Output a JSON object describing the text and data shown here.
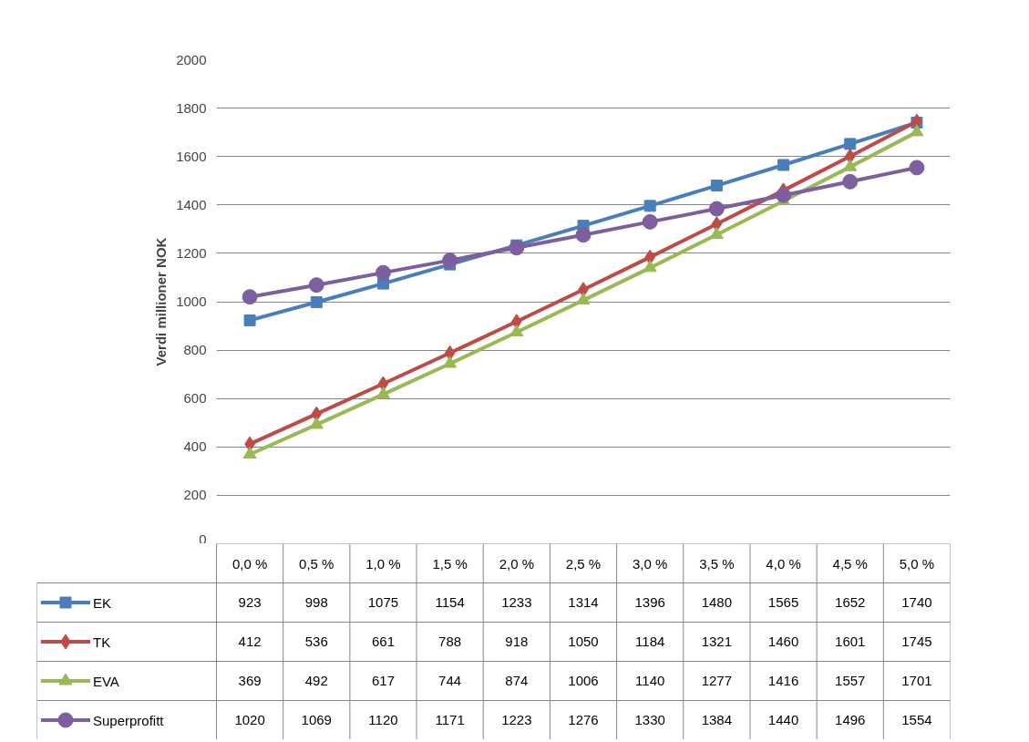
{
  "chart_data": {
    "type": "line",
    "ylabel": "Verdi millioner NOK",
    "categories": [
      "0,0 %",
      "0,5 %",
      "1,0 %",
      "1,5 %",
      "2,0 %",
      "2,5 %",
      "3,0 %",
      "3,5 %",
      "4,0 %",
      "4,5 %",
      "5,0 %"
    ],
    "series": [
      {
        "name": "EK",
        "color": "#4a7ebb",
        "marker": "square",
        "values": [
          923,
          998,
          1075,
          1154,
          1233,
          1314,
          1396,
          1480,
          1565,
          1652,
          1740
        ]
      },
      {
        "name": "TK",
        "color": "#be4b48",
        "marker": "diamond",
        "values": [
          412,
          536,
          661,
          788,
          918,
          1050,
          1184,
          1321,
          1460,
          1601,
          1745
        ]
      },
      {
        "name": "EVA",
        "color": "#98b954",
        "marker": "triangle",
        "values": [
          369,
          492,
          617,
          744,
          874,
          1006,
          1140,
          1277,
          1416,
          1557,
          1701
        ]
      },
      {
        "name": "Superprofitt",
        "color": "#7d5fa0",
        "marker": "circle",
        "values": [
          1020,
          1069,
          1120,
          1171,
          1223,
          1276,
          1330,
          1384,
          1440,
          1496,
          1554
        ]
      }
    ],
    "ylim": [
      0,
      2000
    ],
    "yticks": [
      0,
      200,
      400,
      600,
      800,
      1000,
      1200,
      1400,
      1600,
      1800,
      2000
    ],
    "grid": "y",
    "legend": "bottom",
    "data_labels": true,
    "line_style": "solid"
  }
}
